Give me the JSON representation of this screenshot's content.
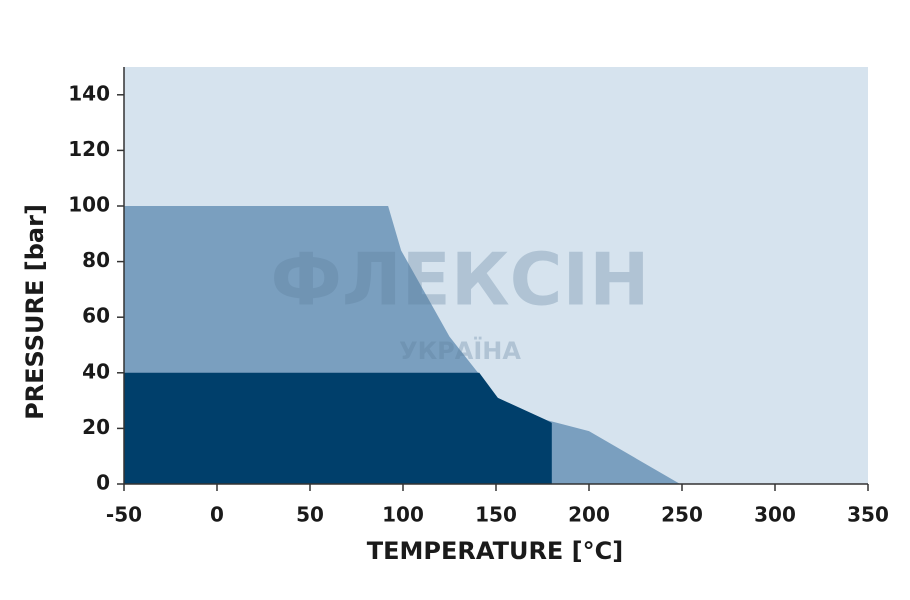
{
  "chart_data": {
    "type": "area",
    "x_label": "TEMPERATURE [°C]",
    "y_label": "PRESSURE [bar]",
    "watermark": [
      "ФЛЕКСІН",
      "УКРАЇНА"
    ],
    "background": "#d6e3ee",
    "series": [
      {
        "color": "#7a9fbf",
        "x": [
          -50,
          -50,
          92,
          99,
          125,
          151,
          177,
          200,
          249
        ],
        "values": [
          0,
          100,
          100,
          84,
          53,
          31,
          23,
          19,
          0
        ]
      },
      {
        "color": "#003f6b",
        "x": [
          -50,
          -50,
          141,
          151,
          177,
          180,
          180
        ],
        "values": [
          0,
          40,
          40,
          31,
          23,
          22,
          0
        ]
      }
    ],
    "xlim": [
      -50,
      350
    ],
    "xticks": [
      -50,
      0,
      50,
      100,
      150,
      200,
      250,
      300,
      350
    ],
    "ylim": [
      0,
      150
    ],
    "yticks": [
      0,
      20,
      40,
      60,
      80,
      100,
      120,
      140
    ]
  }
}
